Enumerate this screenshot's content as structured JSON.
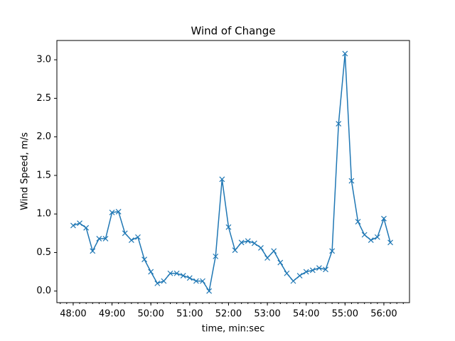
{
  "chart_data": {
    "type": "line",
    "title": "Wind of Change",
    "xlabel": "time, min:sec",
    "ylabel": "Wind Speed, m/s",
    "x": [
      48,
      48.1667,
      48.3333,
      48.5,
      48.6667,
      48.8333,
      49,
      49.1667,
      49.3333,
      49.5,
      49.6667,
      49.8333,
      50,
      50.1667,
      50.3333,
      50.5,
      50.6667,
      50.8333,
      51,
      51.1667,
      51.3333,
      51.5,
      51.6667,
      51.8333,
      52,
      52.1667,
      52.3333,
      52.5,
      52.6667,
      52.8333,
      53,
      53.1667,
      53.3333,
      53.5,
      53.6667,
      53.8333,
      54,
      54.1667,
      54.3333,
      54.5,
      54.6667,
      54.8333,
      55,
      55.1667,
      55.3333,
      55.5,
      55.6667,
      55.8333,
      56,
      56.1667
    ],
    "series": [
      {
        "name": "Wind Speed",
        "color": "#1f77b4",
        "marker": "x",
        "values": [
          0.85,
          0.88,
          0.82,
          0.52,
          0.68,
          0.68,
          1.02,
          1.03,
          0.75,
          0.66,
          0.7,
          0.41,
          0.25,
          0.1,
          0.13,
          0.23,
          0.23,
          0.2,
          0.17,
          0.13,
          0.13,
          0.0,
          0.45,
          1.45,
          0.83,
          0.53,
          0.63,
          0.65,
          0.62,
          0.56,
          0.43,
          0.52,
          0.37,
          0.23,
          0.13,
          0.2,
          0.25,
          0.27,
          0.3,
          0.28,
          0.52,
          2.17,
          3.08,
          1.43,
          0.9,
          0.73,
          0.66,
          0.7,
          0.94,
          0.63
        ]
      }
    ],
    "xlim": [
      47.58,
      56.66
    ],
    "ylim": [
      -0.15,
      3.25
    ],
    "xticks": [
      {
        "value": 48,
        "label": "48:00"
      },
      {
        "value": 49,
        "label": "49:00"
      },
      {
        "value": 50,
        "label": "50:00"
      },
      {
        "value": 51,
        "label": "51:00"
      },
      {
        "value": 52,
        "label": "52:00"
      },
      {
        "value": 53,
        "label": "53:00"
      },
      {
        "value": 54,
        "label": "54:00"
      },
      {
        "value": 55,
        "label": "55:00"
      },
      {
        "value": 56,
        "label": "56:00"
      }
    ],
    "yticks": [
      {
        "value": 0,
        "label": "0.0"
      },
      {
        "value": 0.5,
        "label": "0.5"
      },
      {
        "value": 1,
        "label": "1.0"
      },
      {
        "value": 1.5,
        "label": "1.5"
      },
      {
        "value": 2,
        "label": "2.0"
      },
      {
        "value": 2.5,
        "label": "2.5"
      },
      {
        "value": 3,
        "label": "3.0"
      }
    ],
    "grid": false
  }
}
